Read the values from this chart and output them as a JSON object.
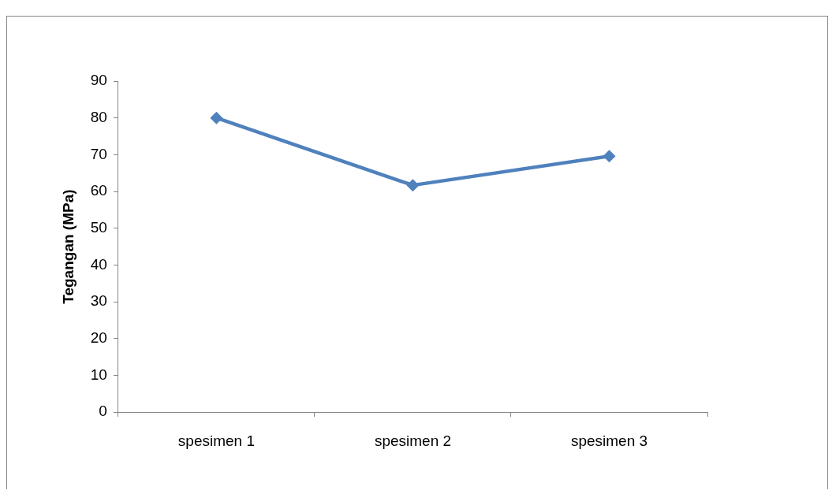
{
  "chart_data": {
    "type": "line",
    "ylabel": "Tegangan (MPa)",
    "categories": [
      "spesimen 1",
      "spesimen 2",
      "spesimen 3"
    ],
    "series": [
      {
        "color": "#4f81bd",
        "values": [
          80,
          61.7,
          69.6
        ]
      }
    ],
    "ylim": [
      0,
      90
    ],
    "yticks": [
      0,
      10,
      20,
      30,
      40,
      50,
      60,
      70,
      80,
      90
    ],
    "grid": false,
    "legend": false,
    "marker": "diamond",
    "line_style": "solid"
  }
}
